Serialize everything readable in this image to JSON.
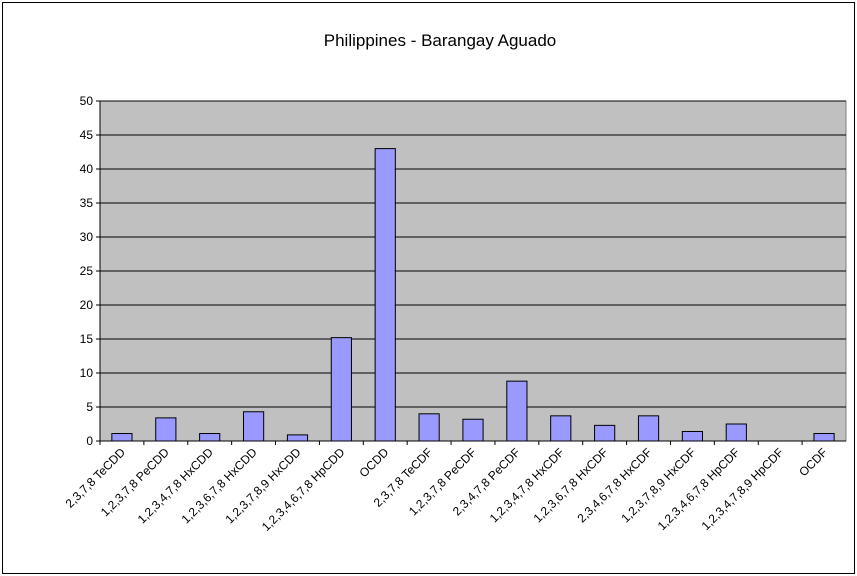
{
  "chart_data": {
    "type": "bar",
    "title": "Philippines - Barangay Aguado",
    "categories": [
      "2,3,7,8 TeCDD",
      "1,2,3,7,8 PeCDD",
      "1,2,3,4,7,8 HxCDD",
      "1,2,3,6,7,8 HxCDD",
      "1,2,3,7,8,9 HxCDD",
      "1,2,3,4,6,7,8 HpCDD",
      "OCDD",
      "2,3,7,8 TeCDF",
      "1,2,3,7,8 PeCDF",
      "2,3,4,7,8 PeCDF",
      "1,2,3,4,7,8 HxCDF",
      "1,2,3,6,7,8 HxCDF",
      "2,3,4,6,7,8 HxCDF",
      "1,2,3,7,8,9 HxCDF",
      "1,2,3,4,6,7,8 HpCDF",
      "1,2,3,4,7,8,9 HpCDF",
      "OCDF"
    ],
    "values": [
      1.1,
      3.4,
      1.1,
      4.3,
      0.9,
      15.2,
      43,
      4,
      3.2,
      8.8,
      3.7,
      2.3,
      3.7,
      1.4,
      2.5,
      0,
      1.1
    ],
    "color": "#9999ff",
    "plot_background": "#c0c0c0",
    "ylim": [
      0,
      50
    ],
    "yticks": [
      0,
      5,
      10,
      15,
      20,
      25,
      30,
      35,
      40,
      45,
      50
    ],
    "grid": true
  }
}
